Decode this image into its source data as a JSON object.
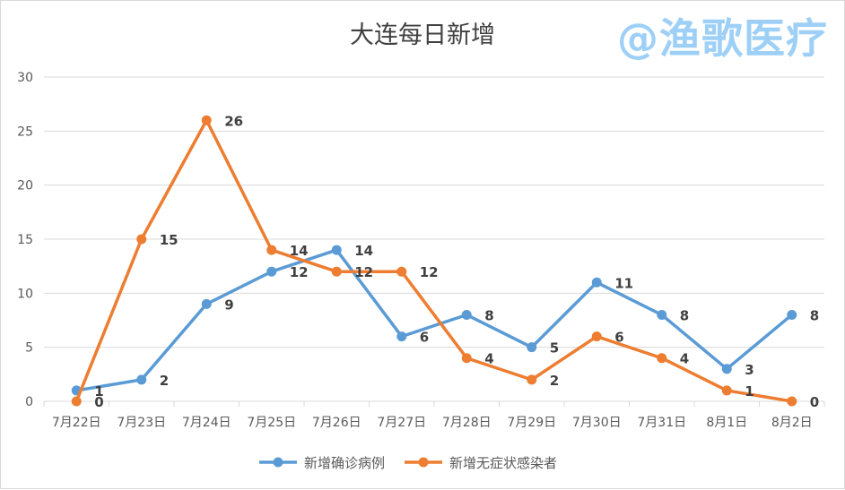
{
  "watermark": "@渔歌医疗",
  "colors": {
    "series_confirmed": "#5b9bd5",
    "series_asymptomatic": "#ed7d31",
    "grid": "#d9d9d9",
    "text": "#595959"
  },
  "chart_data": {
    "type": "line",
    "title": "大连每日新增",
    "categories": [
      "7月22日",
      "7月23日",
      "7月24日",
      "7月25日",
      "7月26日",
      "7月27日",
      "7月28日",
      "7月29日",
      "7月30日",
      "7月31日",
      "8月1日",
      "8月2日"
    ],
    "ylim": [
      0,
      30
    ],
    "yticks": [
      0,
      5,
      10,
      15,
      20,
      25,
      30
    ],
    "grid": true,
    "legend_position": "bottom",
    "series": [
      {
        "name": "新增确诊病例",
        "color": "#5b9bd5",
        "values": [
          1,
          2,
          9,
          12,
          14,
          6,
          8,
          5,
          11,
          8,
          3,
          8
        ]
      },
      {
        "name": "新增无症状感染者",
        "color": "#ed7d31",
        "values": [
          0,
          15,
          26,
          14,
          12,
          12,
          4,
          2,
          6,
          4,
          1,
          0
        ]
      }
    ]
  }
}
